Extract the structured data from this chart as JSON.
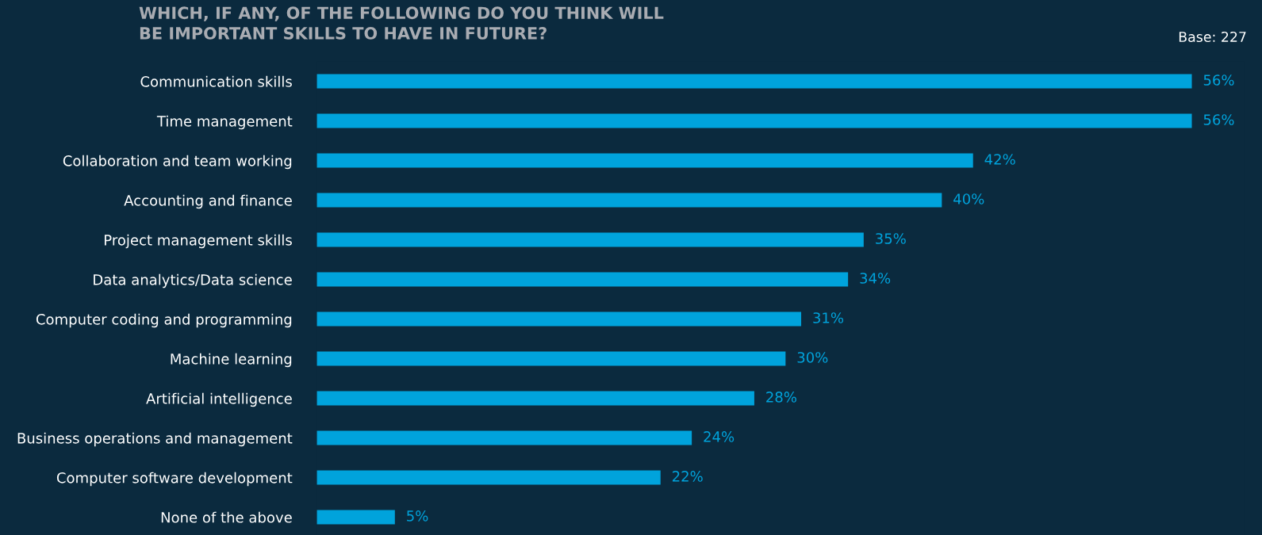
{
  "chart_data": {
    "type": "bar",
    "orientation": "horizontal",
    "title": "WHICH, IF ANY, OF THE FOLLOWING DO YOU THINK WILL\nBE IMPORTANT SKILLS TO HAVE IN FUTURE?",
    "annotations": [
      "Base: 227"
    ],
    "categories": [
      "Communication skills",
      "Time management",
      "Collaboration and team working",
      "Accounting and finance",
      "Project management skills",
      "Data analytics/Data science",
      "Computer coding and programming",
      "Machine learning",
      "Artificial intelligence",
      "Business operations and management",
      "Computer software development",
      "None of the above"
    ],
    "values": [
      56,
      56,
      42,
      40,
      35,
      34,
      31,
      30,
      28,
      24,
      22,
      5
    ],
    "value_labels": [
      "56%",
      "56%",
      "42%",
      "40%",
      "35%",
      "34%",
      "31%",
      "30%",
      "28%",
      "24%",
      "22%",
      "5%"
    ],
    "color": "#00a3dc",
    "grid": false,
    "legend": false
  }
}
